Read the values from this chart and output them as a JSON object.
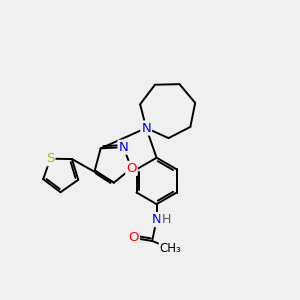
{
  "background_color": "#f0f0f0",
  "bond_color": "#000000",
  "bond_width": 1.4,
  "font_size": 9.5,
  "atoms": {
    "S": {
      "color": "#b8b800"
    },
    "O": {
      "color": "#ff0000"
    },
    "N": {
      "color": "#0000ee"
    },
    "H": {
      "color": "#555555"
    }
  },
  "xlim": [
    0,
    10
  ],
  "ylim": [
    0,
    10
  ]
}
